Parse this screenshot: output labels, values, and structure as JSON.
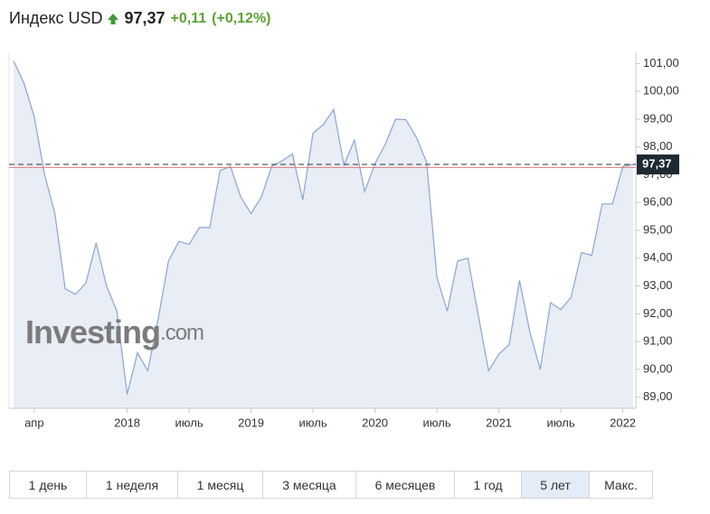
{
  "header": {
    "title": "Индекс USD",
    "price": "97,37",
    "change": "+0,11",
    "change_pct": "(+0,12%)"
  },
  "watermark": {
    "brand": "Investing",
    "suffix": ".com"
  },
  "range_buttons": [
    "1 день",
    "1 неделя",
    "1 месяц",
    "3 месяца",
    "6 месяцев",
    "1 год",
    "5 лет",
    "Макс."
  ],
  "active_range": "5 лет",
  "chart_data": {
    "type": "area",
    "categories": [
      null,
      null,
      "апр",
      null,
      null,
      null,
      null,
      null,
      null,
      null,
      null,
      "2018",
      null,
      null,
      null,
      null,
      null,
      "июль",
      null,
      null,
      null,
      null,
      null,
      "2019",
      null,
      null,
      null,
      null,
      null,
      "июль",
      null,
      null,
      null,
      null,
      null,
      "2020",
      null,
      null,
      null,
      null,
      null,
      "июль",
      null,
      null,
      null,
      null,
      null,
      "2021",
      null,
      null,
      null,
      null,
      null,
      "июль",
      null,
      null,
      null,
      null,
      null,
      "2022",
      null
    ],
    "values": [
      101.1,
      100.3,
      99.1,
      97.0,
      95.6,
      92.9,
      92.7,
      93.1,
      94.55,
      93.0,
      92.1,
      89.1,
      90.6,
      89.95,
      91.8,
      93.9,
      94.6,
      94.5,
      95.1,
      95.1,
      97.15,
      97.3,
      96.2,
      95.6,
      96.2,
      97.3,
      97.5,
      97.75,
      96.1,
      98.5,
      98.8,
      99.35,
      97.35,
      98.25,
      96.4,
      97.4,
      98.1,
      99.0,
      98.98,
      98.35,
      97.45,
      93.3,
      92.1,
      93.9,
      94.0,
      91.95,
      89.95,
      90.55,
      90.9,
      93.2,
      91.35,
      90.0,
      92.4,
      92.15,
      92.6,
      94.2,
      94.1,
      95.95,
      95.95,
      97.3,
      97.37
    ],
    "color": "#8aa6cf",
    "fill": "#e8edf6",
    "ylim": [
      88.6,
      101.4
    ],
    "yticks": [
      {
        "value": 89,
        "label": "89,00"
      },
      {
        "value": 90,
        "label": "90,00"
      },
      {
        "value": 91,
        "label": "91,00"
      },
      {
        "value": 92,
        "label": "92,00"
      },
      {
        "value": 93,
        "label": "93,00"
      },
      {
        "value": 94,
        "label": "94,00"
      },
      {
        "value": 95,
        "label": "95,00"
      },
      {
        "value": 96,
        "label": "96,00"
      },
      {
        "value": 97,
        "label": "97,00"
      },
      {
        "value": 98,
        "label": "98,00"
      },
      {
        "value": 99,
        "label": "99,00"
      },
      {
        "value": 100,
        "label": "100,00"
      },
      {
        "value": 101,
        "label": "101,00"
      }
    ],
    "current": {
      "value": 97.37,
      "label": "97,37"
    },
    "previous_close": 97.26,
    "grid": false
  }
}
